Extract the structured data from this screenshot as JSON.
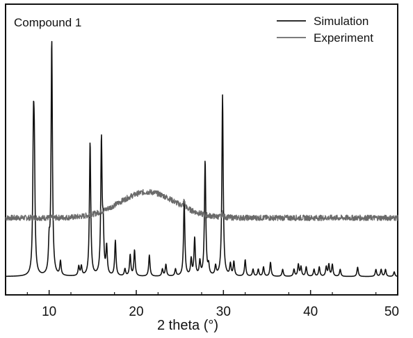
{
  "chart_data": {
    "type": "line",
    "panel_label": "Compound 1",
    "xlabel": "2 theta (°)",
    "ylabel": "",
    "xlim": [
      5,
      50
    ],
    "xticks": [
      10,
      20,
      30,
      40,
      50
    ],
    "y_axis_ticks_shown": false,
    "grid": false,
    "legend_position": "top-right",
    "series": [
      {
        "name": "Simulation",
        "color": "#111111",
        "baseline": 0.06,
        "peaks": [
          [
            8.2,
            0.54
          ],
          [
            8.3,
            0.42
          ],
          [
            10.0,
            0.12
          ],
          [
            10.3,
            1.0
          ],
          [
            11.3,
            0.06
          ],
          [
            13.4,
            0.04
          ],
          [
            13.7,
            0.04
          ],
          [
            14.7,
            0.57
          ],
          [
            16.0,
            0.57
          ],
          [
            16.2,
            0.18
          ],
          [
            16.6,
            0.12
          ],
          [
            17.6,
            0.15
          ],
          [
            18.7,
            0.03
          ],
          [
            19.3,
            0.09
          ],
          [
            19.8,
            0.11
          ],
          [
            21.5,
            0.09
          ],
          [
            23.0,
            0.03
          ],
          [
            23.4,
            0.05
          ],
          [
            24.5,
            0.03
          ],
          [
            25.5,
            0.32
          ],
          [
            26.3,
            0.07
          ],
          [
            26.7,
            0.16
          ],
          [
            27.3,
            0.06
          ],
          [
            27.9,
            0.49
          ],
          [
            28.3,
            0.04
          ],
          [
            29.1,
            0.04
          ],
          [
            29.9,
            0.77
          ],
          [
            30.8,
            0.05
          ],
          [
            31.2,
            0.06
          ],
          [
            32.5,
            0.07
          ],
          [
            33.4,
            0.03
          ],
          [
            34.0,
            0.03
          ],
          [
            34.6,
            0.04
          ],
          [
            35.4,
            0.06
          ],
          [
            36.8,
            0.03
          ],
          [
            38.1,
            0.03
          ],
          [
            38.6,
            0.05
          ],
          [
            38.9,
            0.04
          ],
          [
            39.5,
            0.04
          ],
          [
            40.4,
            0.03
          ],
          [
            41.0,
            0.04
          ],
          [
            41.8,
            0.04
          ],
          [
            42.1,
            0.05
          ],
          [
            42.5,
            0.05
          ],
          [
            43.4,
            0.03
          ],
          [
            45.4,
            0.04
          ],
          [
            47.5,
            0.03
          ],
          [
            48.1,
            0.03
          ],
          [
            48.6,
            0.03
          ],
          [
            49.6,
            0.02
          ]
        ]
      },
      {
        "name": "Experiment",
        "color": "#6a6a6a",
        "baseline": 0.31,
        "hump": {
          "center": 21.3,
          "height": 0.11,
          "width": 4.5
        },
        "peaks": [
          [
            25.5,
            0.03
          ],
          [
            29.9,
            0.02
          ]
        ],
        "noise": 0.012
      }
    ]
  }
}
